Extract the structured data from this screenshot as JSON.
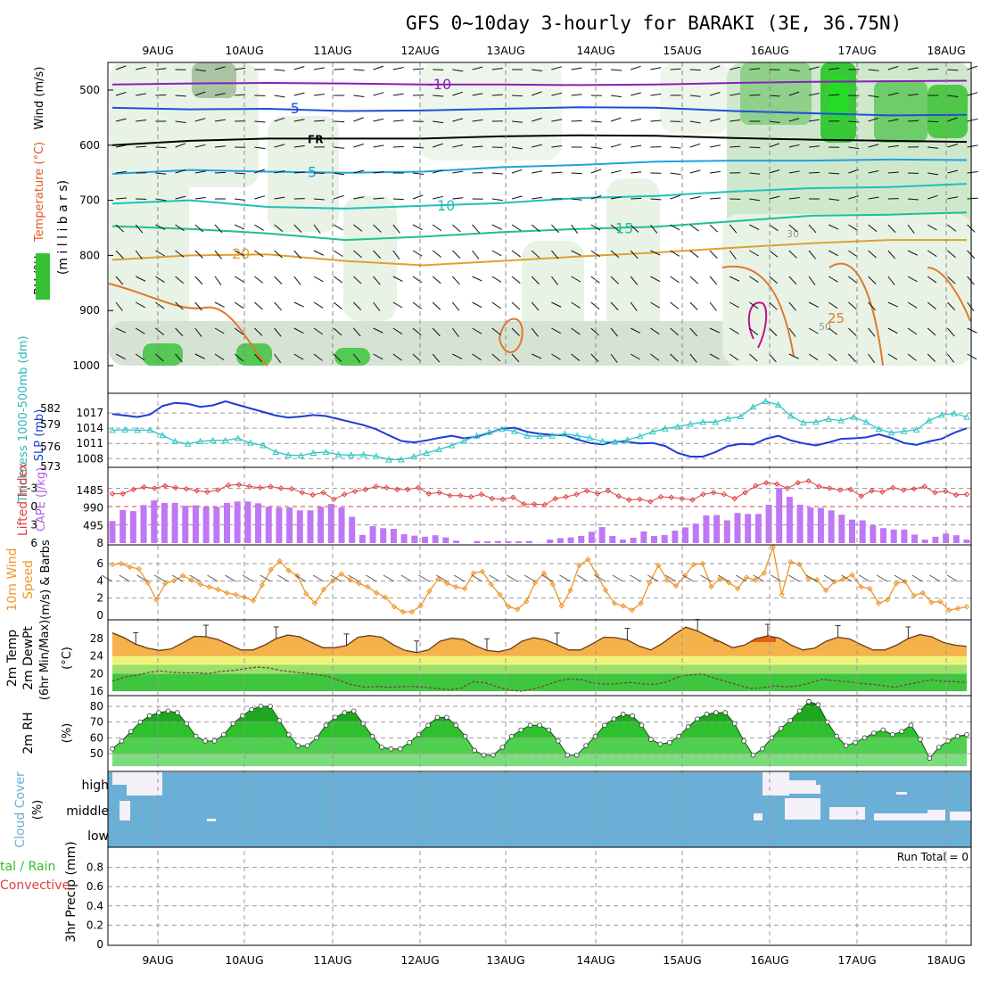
{
  "title": "GFS 0~10day 3-hourly for BARAKI (3E, 36.75N)",
  "dates": [
    "9AUG",
    "10AUG",
    "11AUG",
    "12AUG",
    "13AUG",
    "14AUG",
    "15AUG",
    "16AUG",
    "17AUG",
    "18AUG"
  ],
  "run_total": "Run Total = 0",
  "colors": {
    "rh_green": "#2fbf2f",
    "cape": "#c077f5",
    "lifted": "#e04040",
    "slp": "#1a3dd6",
    "thickness": "#2fc6c6",
    "wind": "#f0962a",
    "temp": "#f2a53a",
    "rh2m": "#3cc83c",
    "cloud": "#6baed6"
  },
  "chart_data": [
    {
      "panel": "upper-air",
      "type": "heatmap",
      "ylabel": "millibars",
      "legend": [
        "RH (%)",
        "Temperature (°C)",
        "Wind (m/s)"
      ],
      "yticks": [
        "500",
        "600",
        "700",
        "800",
        "900",
        "1000"
      ],
      "ylim": [
        1000,
        450
      ],
      "isotherms": [
        {
          "label": "-10",
          "p": [
            490,
            488,
            487,
            488,
            490,
            490,
            491,
            490,
            487,
            485,
            484,
            483
          ]
        },
        {
          "label": "-5",
          "p": [
            532,
            535,
            534,
            538,
            537,
            534,
            531,
            532,
            538,
            542,
            546,
            545
          ]
        },
        {
          "label": "FR",
          "p": [
            600,
            592,
            588,
            588,
            588,
            584,
            582,
            583,
            587,
            590,
            592,
            594
          ]
        },
        {
          "label": "5",
          "p": [
            652,
            645,
            648,
            650,
            648,
            640,
            636,
            630,
            628,
            628,
            626,
            627
          ]
        },
        {
          "label": "10",
          "p": [
            706,
            700,
            712,
            715,
            710,
            705,
            696,
            692,
            684,
            678,
            676,
            670
          ]
        },
        {
          "label": "15",
          "p": [
            747,
            752,
            760,
            772,
            766,
            758,
            752,
            748,
            738,
            728,
            726,
            722
          ]
        },
        {
          "label": "20",
          "p": [
            808,
            800,
            798,
            810,
            818,
            810,
            802,
            795,
            786,
            778,
            772,
            772
          ]
        }
      ],
      "annotations": [
        "-10",
        "-5",
        "FR",
        "5",
        "10",
        "15",
        "20",
        "25",
        "30",
        "50"
      ]
    },
    {
      "panel": "slp-thickness",
      "type": "line",
      "ylabel_left": "Thickness 1000-500mb (dm)",
      "ylabel_right": "SLP (mb)",
      "yticks_left": [
        "582",
        "579",
        "576",
        "573"
      ],
      "yticks_right": [
        "1017",
        "1014",
        "1011",
        "1008"
      ],
      "ylim": [
        1007,
        1020
      ],
      "series": [
        {
          "name": "SLP (mb)",
          "values": [
            1016.8,
            1016.5,
            1016.2,
            1016.7,
            1018.4,
            1019.0,
            1018.8,
            1018.2,
            1018.5,
            1019.3,
            1018.6,
            1017.9,
            1017.2,
            1016.5,
            1016.1,
            1016.3,
            1016.6,
            1016.4,
            1015.8,
            1015.2,
            1014.6,
            1013.8,
            1012.6,
            1011.5,
            1011.2,
            1011.6,
            1012.1,
            1012.5,
            1012.0,
            1012.3,
            1013.1,
            1013.9,
            1014.1,
            1013.3,
            1012.9,
            1012.7,
            1012.6,
            1011.8,
            1011.1,
            1010.8,
            1011.4,
            1011.3,
            1011.0,
            1011.1,
            1010.5,
            1009.1,
            1008.4,
            1008.4,
            1009.3,
            1010.5,
            1010.9,
            1010.8,
            1011.9,
            1012.5,
            1011.6,
            1011.0,
            1010.6,
            1011.2,
            1011.9,
            1012.0,
            1012.2,
            1012.8,
            1012.1,
            1011.1,
            1010.7,
            1011.4,
            1011.9,
            1013.1,
            1014.0
          ],
          "name2": "Thickness 1000-500mb (dm)"
        },
        {
          "name": "Thickness 1000-500mb (dm)",
          "values": [
            1013.6,
            1013.7,
            1013.6,
            1013.6,
            1012.6,
            1011.4,
            1010.9,
            1011.4,
            1011.6,
            1011.6,
            1012.0,
            1011.1,
            1010.6,
            1009.3,
            1008.7,
            1008.6,
            1009.1,
            1009.3,
            1008.8,
            1008.7,
            1008.8,
            1008.5,
            1007.8,
            1007.8,
            1008.4,
            1009.1,
            1009.8,
            1010.6,
            1011.5,
            1012.5,
            1013.2,
            1013.8,
            1013.4,
            1012.5,
            1012.4,
            1012.5,
            1012.9,
            1012.5,
            1012.1,
            1011.4,
            1011.3,
            1011.7,
            1012.4,
            1013.3,
            1013.9,
            1014.3,
            1014.8,
            1015.2,
            1015.2,
            1015.9,
            1016.3,
            1018.2,
            1019.3,
            1018.6,
            1016.4,
            1015.1,
            1015.2,
            1015.8,
            1015.5,
            1016.2,
            1015.2,
            1013.8,
            1013.1,
            1013.4,
            1013.7,
            1015.5,
            1016.6,
            1016.9,
            1016.2
          ]
        }
      ]
    },
    {
      "panel": "cape-li",
      "type": "bar",
      "ylabel_left": "Lifted Index",
      "ylabel_right": "CAPE (J/kg)",
      "yticks_left": [
        "-3",
        "0",
        "3",
        "6"
      ],
      "yticks_right": [
        "1485",
        "990",
        "495",
        "8"
      ],
      "ylim": [
        0,
        1980
      ],
      "series": [
        {
          "name": "CAPE (J/kg)",
          "values": [
            620,
            930,
            900,
            1070,
            1200,
            1130,
            1130,
            1050,
            1060,
            1020,
            1020,
            1130,
            1170,
            1170,
            1120,
            1020,
            1000,
            1000,
            920,
            920,
            1020,
            1100,
            1000,
            740,
            230,
            480,
            420,
            400,
            250,
            210,
            180,
            220,
            160,
            70,
            0,
            60,
            50,
            60,
            50,
            50,
            60,
            5,
            100,
            140,
            160,
            200,
            320,
            450,
            200,
            100,
            150,
            330,
            200,
            230,
            350,
            440,
            550,
            780,
            790,
            640,
            850,
            820,
            820,
            1080,
            1550,
            1300,
            1080,
            1000,
            990,
            920,
            800,
            660,
            640,
            500,
            420,
            380,
            380,
            240,
            100,
            180,
            270,
            220,
            100
          ],
          "name2": "x"
        },
        {
          "name": "Lifted Index",
          "values": [
            -2.1,
            -2.1,
            -2.8,
            -3.2,
            -3.0,
            -3.4,
            -3.1,
            -2.9,
            -2.6,
            -2.4,
            -2.7,
            -3.5,
            -3.6,
            -3.3,
            -3.1,
            -3.3,
            -3.0,
            -2.9,
            -2.3,
            -1.9,
            -2.3,
            -1.2,
            -2.0,
            -2.5,
            -2.8,
            -3.3,
            -3.1,
            -2.8,
            -2.8,
            -3.1,
            -2.1,
            -2.3,
            -1.8,
            -1.8,
            -1.6,
            -2.0,
            -1.3,
            -1.2,
            -1.5,
            -0.4,
            -0.4,
            -0.3,
            -1.3,
            -1.6,
            -2.0,
            -2.6,
            -2.1,
            -2.6,
            -1.7,
            -1.1,
            -1.2,
            -0.8,
            -1.6,
            -1.5,
            -1.3,
            -1.1,
            -2.0,
            -2.3,
            -2.0,
            -1.3,
            -2.3,
            -3.4,
            -3.9,
            -3.7,
            -3.0,
            -3.9,
            -4.2,
            -3.3,
            -3.0,
            -2.7,
            -2.8,
            -1.7,
            -2.6,
            -2.4,
            -3.1,
            -2.7,
            -2.9,
            -3.3,
            -2.3,
            -2.5,
            -1.9,
            -2.0
          ]
        }
      ]
    },
    {
      "panel": "wind10m",
      "type": "line",
      "ylabel": "10m Wind Speed (m/s) & Barbs",
      "yticks": [
        "6",
        "4",
        "2",
        "0"
      ],
      "ylim": [
        0,
        7
      ],
      "series": [
        {
          "name": "10m Wind Speed",
          "values": [
            5.9,
            6.0,
            5.6,
            5.4,
            3.8,
            1.8,
            3.7,
            4.0,
            4.6,
            4.1,
            3.6,
            3.3,
            3.0,
            2.6,
            2.4,
            2.1,
            1.7,
            3.5,
            5.3,
            6.3,
            5.2,
            4.6,
            2.5,
            1.4,
            3.0,
            4.0,
            4.8,
            4.1,
            3.7,
            3.3,
            2.6,
            2.1,
            1.0,
            0.4,
            0.4,
            1.1,
            2.8,
            4.2,
            3.7,
            3.3,
            3.1,
            4.9,
            5.1,
            3.6,
            2.4,
            1.0,
            0.7,
            1.6,
            3.8,
            4.9,
            3.6,
            1.1,
            2.9,
            5.8,
            6.5,
            4.7,
            2.9,
            1.4,
            1.1,
            0.6,
            1.4,
            3.8,
            5.8,
            4.1,
            3.4,
            4.6,
            5.9,
            6.0,
            3.3,
            4.3,
            3.8,
            3.1,
            4.4,
            4.1,
            4.9,
            7.9,
            2.4,
            6.2,
            5.9,
            4.3,
            4.1,
            2.9,
            3.9,
            4.2,
            4.7,
            3.3,
            3.1,
            1.4,
            1.8,
            3.7,
            3.9,
            2.3,
            2.6,
            1.5,
            1.6,
            0.6,
            0.8,
            1.0
          ]
        }
      ]
    },
    {
      "panel": "temp2m",
      "type": "area",
      "ylabel": "2m Temp 2m DewPt (6hr Min/Max) (°C)",
      "yticks": [
        "28",
        "24",
        "20",
        "16"
      ],
      "ylim": [
        15,
        31
      ],
      "series": [
        {
          "name": "2m Temp",
          "values": [
            29.3,
            28.2,
            26.7,
            25.8,
            25.3,
            25.6,
            27.0,
            28.5,
            28.4,
            27.8,
            26.6,
            25.4,
            25.4,
            26.5,
            28.0,
            28.8,
            28.4,
            27.1,
            25.9,
            25.9,
            26.4,
            28.3,
            28.7,
            28.3,
            26.6,
            25.3,
            24.8,
            25.4,
            27.4,
            28.1,
            27.8,
            26.4,
            25.3,
            25.0,
            25.6,
            27.4,
            28.2,
            27.7,
            26.6,
            25.4,
            25.4,
            26.8,
            28.3,
            28.2,
            27.7,
            26.3,
            25.4,
            26.9,
            28.9,
            30.6,
            29.7,
            28.4,
            27.2,
            25.9,
            26.5,
            28.0,
            28.6,
            28.1,
            26.5,
            25.4,
            25.8,
            27.4,
            28.3,
            27.9,
            26.6,
            25.4,
            25.4,
            26.5,
            28.0,
            28.9,
            28.4,
            27.1,
            26.5,
            26.2
          ]
        },
        {
          "name": "2m DewPt",
          "values": [
            18.3,
            19.2,
            19.6,
            20.3,
            20.6,
            20.3,
            20.2,
            20.2,
            20.0,
            20.5,
            20.7,
            21.1,
            21.5,
            21.3,
            20.7,
            20.4,
            20.1,
            19.8,
            19.3,
            18.3,
            17.4,
            16.9,
            17.1,
            16.9,
            17.0,
            17.1,
            16.9,
            16.6,
            16.3,
            16.7,
            18.2,
            17.9,
            17.0,
            16.2,
            16.0,
            16.5,
            17.3,
            18.3,
            18.8,
            18.6,
            17.8,
            17.6,
            17.7,
            18.0,
            17.7,
            17.5,
            18.1,
            19.2,
            19.7,
            19.9,
            19.0,
            18.2,
            17.4,
            16.6,
            16.8,
            17.2,
            17.0,
            17.2,
            17.9,
            18.7,
            18.4,
            18.2,
            17.8,
            17.6,
            17.3,
            16.9,
            17.5,
            18.0,
            18.6,
            18.2,
            18.2,
            18.0
          ]
        }
      ]
    },
    {
      "panel": "rh2m",
      "type": "area",
      "ylabel": "2m RH (%)",
      "yticks": [
        "80",
        "70",
        "60",
        "50"
      ],
      "ylim": [
        42,
        84
      ],
      "series": [
        {
          "name": "2m RH",
          "values": [
            53,
            58,
            64,
            70,
            74,
            76,
            77,
            76,
            69,
            61,
            58,
            58,
            62,
            69,
            74,
            78,
            80,
            80,
            71,
            62,
            55,
            55,
            60,
            68,
            73,
            76,
            77,
            69,
            61,
            54,
            53,
            53,
            57,
            62,
            68,
            73,
            73,
            68,
            61,
            52,
            49,
            49,
            54,
            61,
            65,
            68,
            68,
            65,
            58,
            49,
            49,
            55,
            61,
            68,
            72,
            75,
            74,
            68,
            59,
            56,
            57,
            61,
            67,
            72,
            75,
            76,
            76,
            69,
            58,
            49,
            53,
            60,
            66,
            71,
            77,
            83,
            81,
            70,
            61,
            55,
            57,
            60,
            63,
            65,
            62,
            64,
            68,
            59,
            47,
            54,
            58,
            61,
            62
          ]
        }
      ]
    },
    {
      "panel": "cloud",
      "type": "heatmap",
      "ylabel": "Cloud Cover (%)",
      "yticks": [
        "high",
        "middle",
        "low"
      ],
      "legend": [
        "Cloud Cover"
      ]
    },
    {
      "panel": "precip",
      "type": "bar",
      "ylabel": "3hr Precip (mm)",
      "legend": [
        "Total / Rain",
        "Convective"
      ],
      "yticks": [
        "0.8",
        "0.6",
        "0.4",
        "0.2",
        "0"
      ],
      "ylim": [
        0,
        1
      ],
      "series": [
        {
          "name": "Total / Rain",
          "values": []
        }
      ]
    }
  ]
}
